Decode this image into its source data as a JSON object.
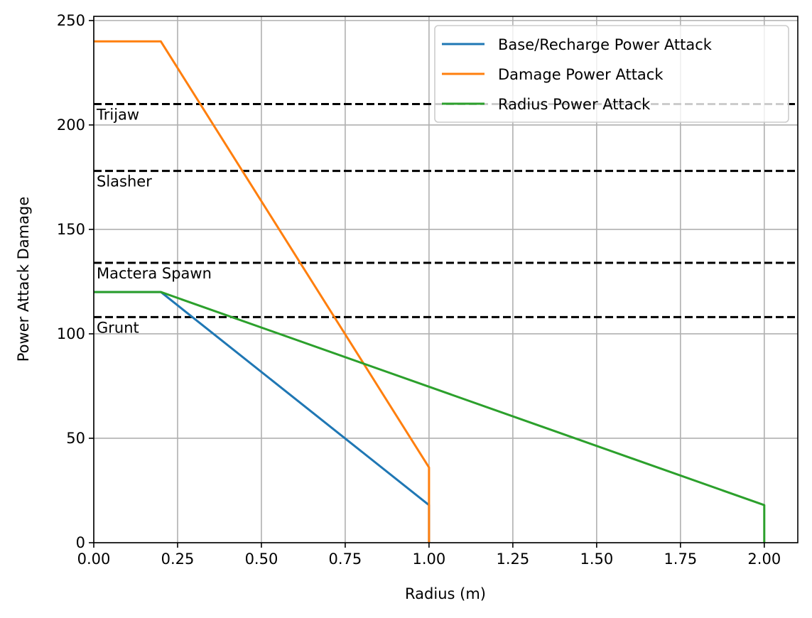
{
  "chart_data": {
    "type": "line",
    "title": "",
    "xlabel": "Radius (m)",
    "ylabel": "Power Attack Damage",
    "xlim": [
      0,
      2.1
    ],
    "ylim": [
      0,
      252
    ],
    "xticks": [
      0,
      0.25,
      0.5,
      0.75,
      1.0,
      1.25,
      1.5,
      1.75,
      2.0
    ],
    "xtick_labels": [
      "0.00",
      "0.25",
      "0.50",
      "0.75",
      "1.00",
      "1.25",
      "1.50",
      "1.75",
      "2.00"
    ],
    "yticks": [
      0,
      50,
      100,
      150,
      200,
      250
    ],
    "ytick_labels": [
      "0",
      "50",
      "100",
      "150",
      "200",
      "250"
    ],
    "grid": true,
    "legend_position": "top-right",
    "series": [
      {
        "name": "Base/Recharge Power Attack",
        "color": "#1f77b4",
        "x": [
          0,
          0.2,
          1.0,
          1.0
        ],
        "y": [
          120,
          120,
          18,
          0
        ]
      },
      {
        "name": "Damage Power Attack",
        "color": "#ff7f0e",
        "x": [
          0,
          0.2,
          1.0,
          1.0
        ],
        "y": [
          240,
          240,
          36,
          0
        ]
      },
      {
        "name": "Radius Power Attack",
        "color": "#2ca02c",
        "x": [
          0,
          0.2,
          2.0,
          2.0
        ],
        "y": [
          120,
          120,
          18,
          0
        ]
      }
    ],
    "reference_lines": [
      {
        "label": "Trijaw",
        "y": 210,
        "color": "#000000",
        "style": "dashed"
      },
      {
        "label": "Slasher",
        "y": 178,
        "color": "#000000",
        "style": "dashed"
      },
      {
        "label": "Mactera Spawn",
        "y": 134,
        "color": "#000000",
        "style": "dashed"
      },
      {
        "label": "Grunt",
        "y": 108,
        "color": "#000000",
        "style": "dashed"
      }
    ]
  }
}
